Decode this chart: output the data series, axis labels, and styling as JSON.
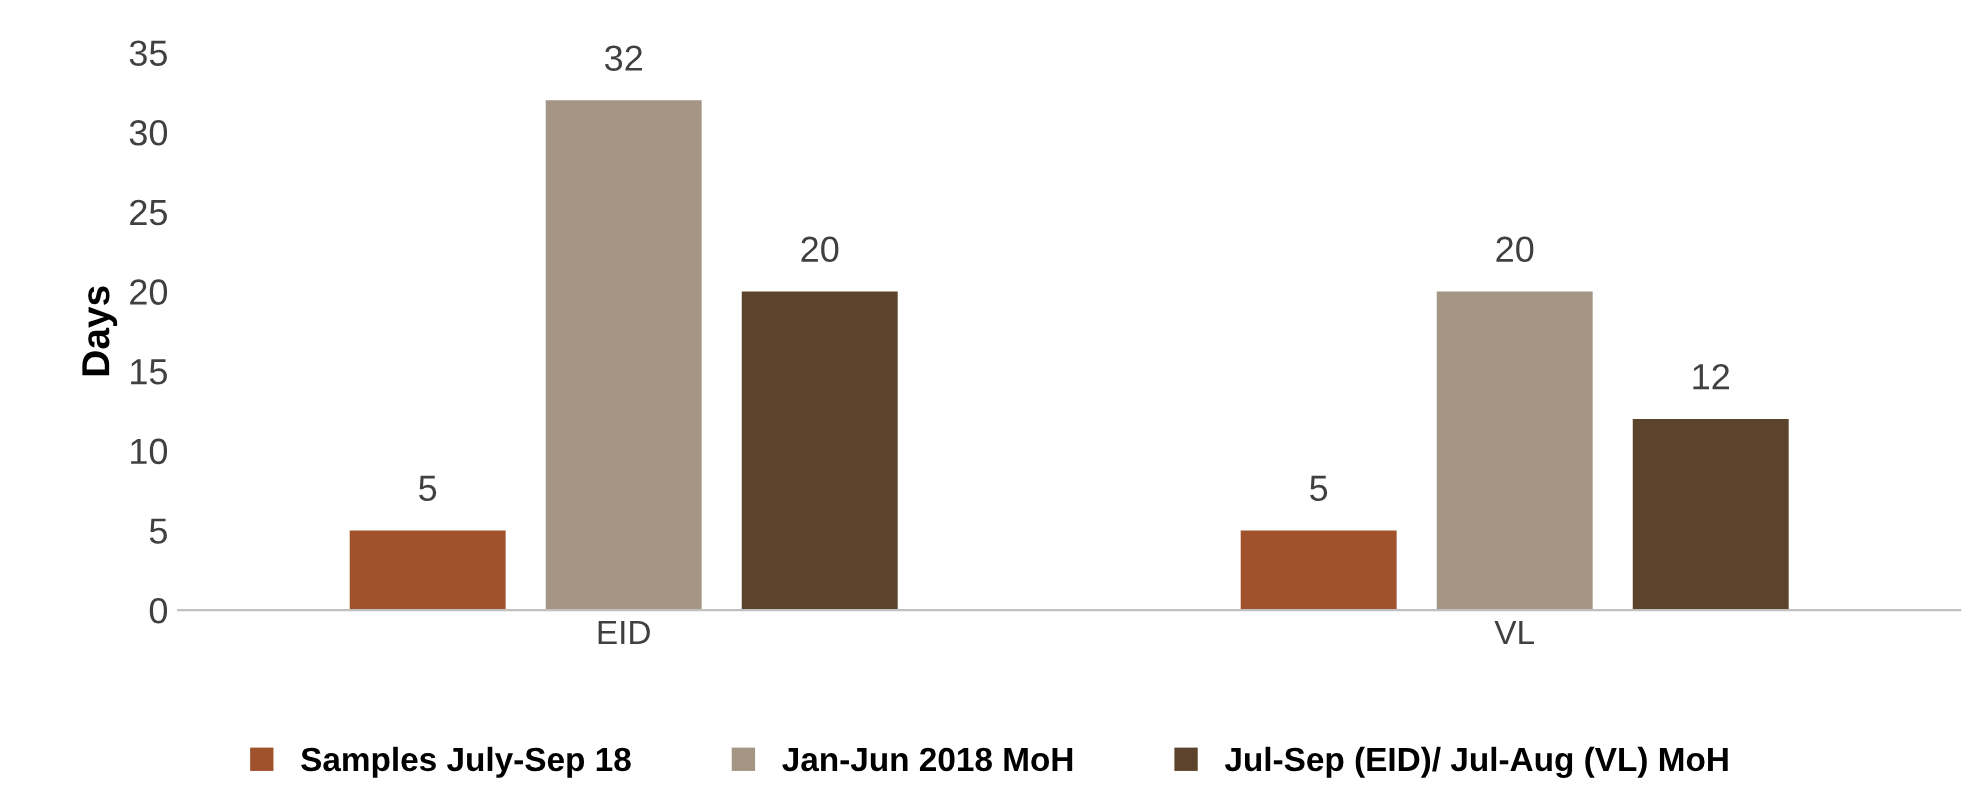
{
  "chart_data": {
    "type": "bar",
    "ylabel": "Days",
    "categories": [
      "EID",
      "VL"
    ],
    "series": [
      {
        "name": "Samples July-Sep 18",
        "color": "#a0522d",
        "values": [
          5,
          5
        ]
      },
      {
        "name": "Jan-Jun 2018 MoH",
        "color": "#a59584",
        "values": [
          32,
          20
        ]
      },
      {
        "name": "Jul-Sep (EID)/ Jul-Aug (VL) MoH",
        "color": "#5c432c",
        "values": [
          20,
          12
        ]
      }
    ],
    "ylim": [
      0,
      35
    ],
    "yticks": [
      0,
      5,
      10,
      15,
      20,
      25,
      30,
      35
    ],
    "data_labels": true,
    "legend": "bottom",
    "grid": false
  }
}
